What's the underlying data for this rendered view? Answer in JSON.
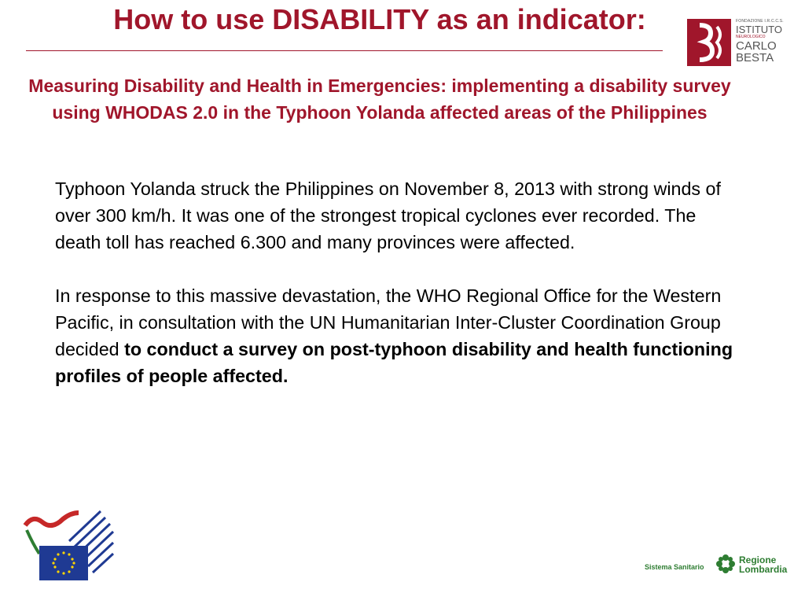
{
  "slide": {
    "title": "How to use DISABILITY as an indicator:",
    "subtitle": "Measuring Disability and Health in Emergencies: implementing a disability survey using WHODAS 2.0 in the Typhoon Yolanda affected areas of the Philippines",
    "paragraph1": "Typhoon Yolanda struck the Philippines on November 8, 2013 with strong winds of over 300 km/h. It was one of the strongest tropical cyclones ever recorded. The death toll has reached 6.300 and many provinces were affected.",
    "paragraph2_plain": "In response to this massive devastation, the WHO Regional Office for the Western Pacific, in consultation with the UN Humanitarian Inter-Cluster Coordination Group decided ",
    "paragraph2_bold": "to conduct a survey on post-typhoon disability and health functioning profiles of people affected."
  },
  "logo_besta": {
    "line1": "FONDAZIONE I.R.C.C.S.",
    "line2": "ISTITUTO",
    "line3": "NEUROLOGICO",
    "line4": "CARLO",
    "line5": "BESTA",
    "icon": "besta-logo-icon"
  },
  "logo_lombardia": {
    "sistema": "Sistema Sanitario",
    "regione_line1": "Regione",
    "regione_line2": "Lombardia",
    "icon": "lombardia-cross-icon"
  },
  "logo_eu": {
    "icon": "eu-flag-ribbon-icon"
  },
  "colors": {
    "accent": "#a0162b",
    "text": "#000000",
    "lombardia_green": "#2e7d32",
    "eu_blue": "#1f3a93"
  }
}
